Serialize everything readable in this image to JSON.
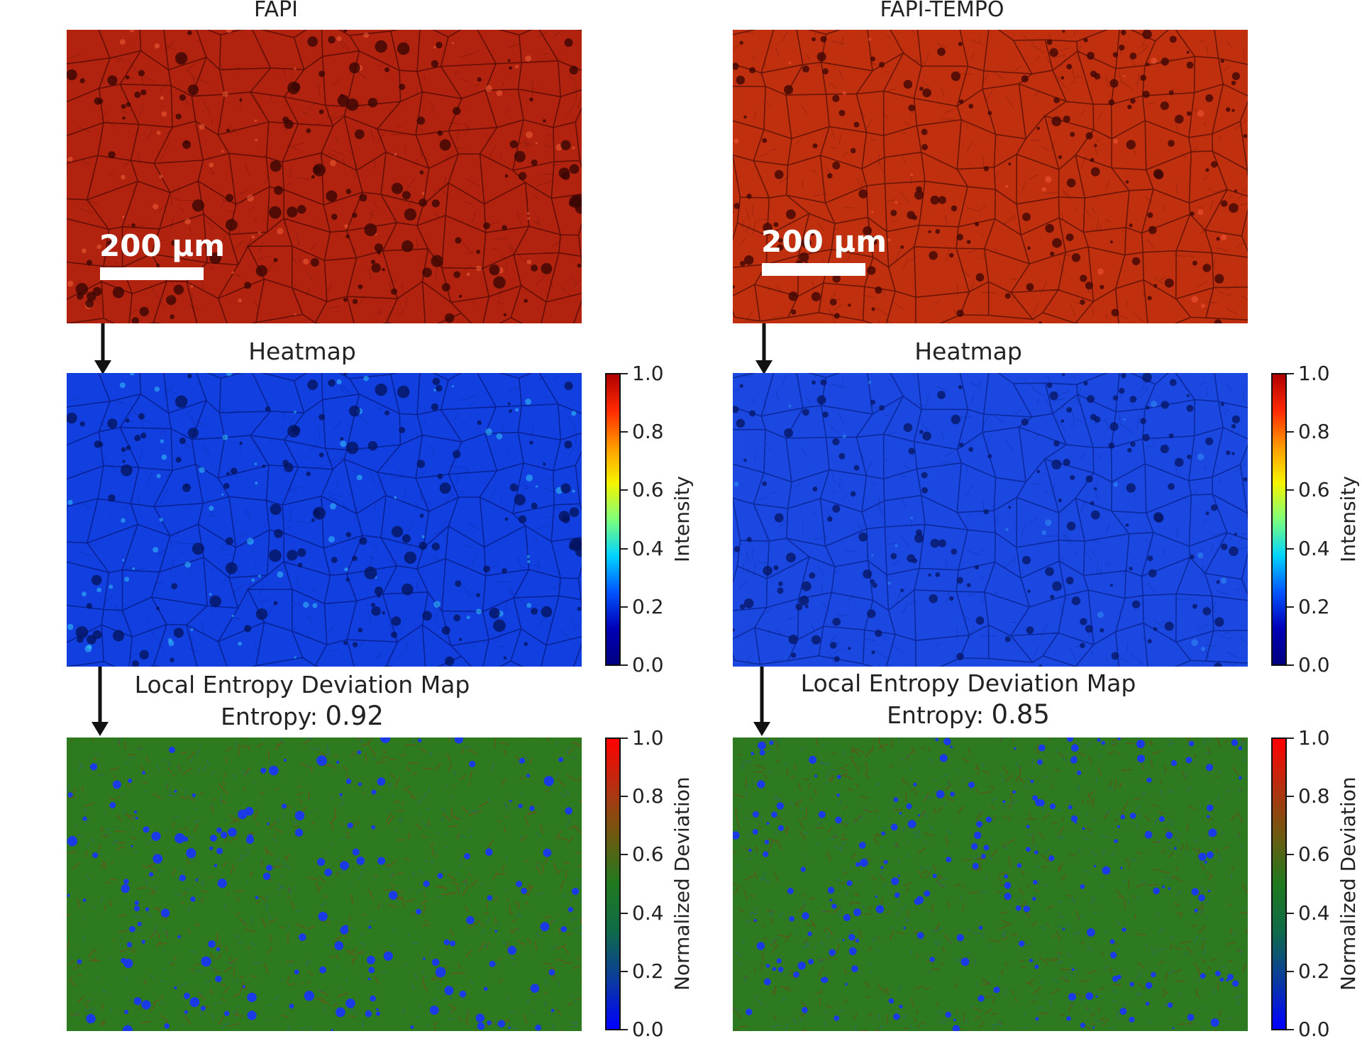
{
  "columns": [
    {
      "title": "FAPI",
      "scale_bar": "200 μm",
      "heatmap_title": "Heatmap",
      "entropy_map_title": "Local Entropy Deviation Map",
      "entropy_label": "Entropy:",
      "entropy_value": "0.92"
    },
    {
      "title": "FAPI-TEMPO",
      "scale_bar": "200 μm",
      "heatmap_title": "Heatmap",
      "entropy_map_title": "Local Entropy Deviation Map",
      "entropy_label": "Entropy:",
      "entropy_value": "0.85"
    }
  ],
  "colorbars": {
    "heatmap": {
      "label": "Intensity",
      "ticks": [
        "1.0",
        "0.8",
        "0.6",
        "0.4",
        "0.2",
        "0.0"
      ],
      "colors": [
        "#b00000",
        "#ff2a00",
        "#ff9a00",
        "#f5f500",
        "#7dff7a",
        "#00d4ff",
        "#0055ff",
        "#0000b8",
        "#000080"
      ]
    },
    "deviation": {
      "label": "Normalized Deviation",
      "ticks": [
        "1.0",
        "0.8",
        "0.6",
        "0.4",
        "0.2",
        "0.0"
      ],
      "colors": [
        "#ff0000",
        "#b53010",
        "#6e5a10",
        "#1f7a1f",
        "#0f6a4a",
        "#0a3aa0",
        "#0000ff"
      ]
    }
  },
  "image_colors": {
    "micrograph_base": "#b2230f",
    "micrograph_base_tempo": "#c0300f",
    "heatmap_base": "#1240e0",
    "deviation_base": "#2e7a1e",
    "deviation_spot": "#1a3ae6"
  }
}
